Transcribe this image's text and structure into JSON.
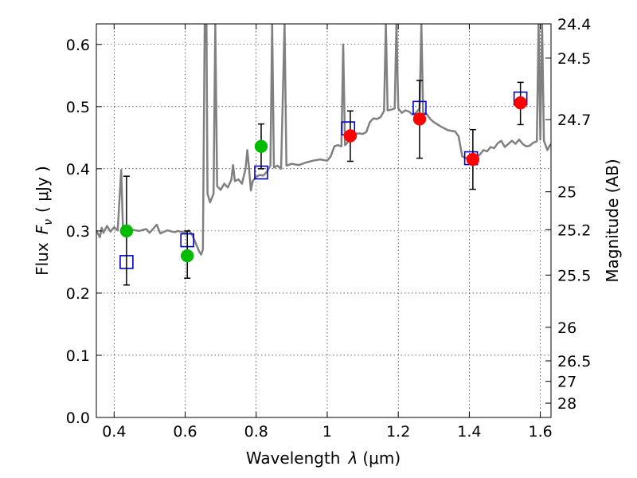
{
  "chart_data": {
    "type": "scatter",
    "xlabel_prefix": "Wavelength",
    "xlabel_symbol": "λ",
    "xlabel_unit": "(μm)",
    "ylabel_prefix": "Flux",
    "ylabel_symbol": "F",
    "ylabel_subscript": "ν",
    "ylabel_unit": "( μJy )",
    "y2label": "Magnitude (AB)",
    "xlim": [
      0.35,
      1.63
    ],
    "ylim": [
      0.0,
      0.633
    ],
    "grid": true,
    "x_ticks": [
      0.4,
      0.6,
      0.8,
      1.0,
      1.2,
      1.4,
      1.6
    ],
    "x_tick_labels": [
      "0.4",
      "0.6",
      "0.8",
      "1",
      "1.2",
      "1.4",
      "1.6"
    ],
    "y_ticks": [
      0.0,
      0.1,
      0.2,
      0.3,
      0.4,
      0.5,
      0.6
    ],
    "y_tick_labels": [
      "0.0",
      "0.1",
      "0.2",
      "0.3",
      "0.4",
      "0.5",
      "0.6"
    ],
    "y2_ticks": [
      {
        "label": "24.4",
        "flux": 0.633
      },
      {
        "label": "24.5",
        "flux": 0.578
      },
      {
        "label": "24.7",
        "flux": 0.479
      },
      {
        "label": "25",
        "flux": 0.363
      },
      {
        "label": "25.2",
        "flux": 0.302
      },
      {
        "label": "25.5",
        "flux": 0.229
      },
      {
        "label": "26",
        "flux": 0.145
      },
      {
        "label": "26.5",
        "flux": 0.091
      },
      {
        "label": "27",
        "flux": 0.058
      },
      {
        "label": "28",
        "flux": 0.023
      }
    ],
    "series": [
      {
        "marker": "square-open",
        "color": "#0000cc",
        "points": [
          {
            "x": 0.435,
            "y": 0.25
          },
          {
            "x": 0.606,
            "y": 0.285
          },
          {
            "x": 0.814,
            "y": 0.394
          },
          {
            "x": 1.059,
            "y": 0.465
          },
          {
            "x": 1.26,
            "y": 0.498
          },
          {
            "x": 1.405,
            "y": 0.417
          },
          {
            "x": 1.544,
            "y": 0.513
          }
        ]
      },
      {
        "marker": "circle-filled",
        "color": "#00bb00",
        "points": [
          {
            "x": 0.435,
            "y": 0.3,
            "err_low": 0.213,
            "err_high": 0.388
          },
          {
            "x": 0.606,
            "y": 0.26,
            "err_low": 0.224,
            "err_high": 0.3
          },
          {
            "x": 0.814,
            "y": 0.436,
            "err_low": 0.4,
            "err_high": 0.472
          }
        ]
      },
      {
        "marker": "circle-filled",
        "color": "#ff0000",
        "points": [
          {
            "x": 1.065,
            "y": 0.453,
            "err_low": 0.412,
            "err_high": 0.493
          },
          {
            "x": 1.26,
            "y": 0.48,
            "err_low": 0.417,
            "err_high": 0.542
          },
          {
            "x": 1.41,
            "y": 0.415,
            "err_low": 0.367,
            "err_high": 0.463
          },
          {
            "x": 1.544,
            "y": 0.506,
            "err_low": 0.471,
            "err_high": 0.539
          }
        ]
      }
    ],
    "spectrum": {
      "color": "#808080",
      "points": [
        [
          0.35,
          0.3
        ],
        [
          0.36,
          0.29
        ],
        [
          0.365,
          0.305
        ],
        [
          0.37,
          0.297
        ],
        [
          0.38,
          0.308
        ],
        [
          0.39,
          0.299
        ],
        [
          0.4,
          0.306
        ],
        [
          0.41,
          0.301
        ],
        [
          0.42,
          0.398
        ],
        [
          0.425,
          0.3
        ],
        [
          0.43,
          0.308
        ],
        [
          0.44,
          0.298
        ],
        [
          0.45,
          0.302
        ],
        [
          0.47,
          0.3
        ],
        [
          0.49,
          0.303
        ],
        [
          0.5,
          0.297
        ],
        [
          0.52,
          0.31
        ],
        [
          0.53,
          0.296
        ],
        [
          0.55,
          0.301
        ],
        [
          0.57,
          0.298
        ],
        [
          0.58,
          0.3
        ],
        [
          0.6,
          0.297
        ],
        [
          0.61,
          0.301
        ],
        [
          0.62,
          0.294
        ],
        [
          0.63,
          0.28
        ],
        [
          0.64,
          0.266
        ],
        [
          0.645,
          0.262
        ],
        [
          0.65,
          0.27
        ],
        [
          0.655,
          0.633
        ],
        [
          0.66,
          0.633
        ],
        [
          0.663,
          0.36
        ],
        [
          0.67,
          0.346
        ],
        [
          0.68,
          0.36
        ],
        [
          0.685,
          0.633
        ],
        [
          0.69,
          0.372
        ],
        [
          0.7,
          0.366
        ],
        [
          0.71,
          0.376
        ],
        [
          0.72,
          0.37
        ],
        [
          0.73,
          0.382
        ],
        [
          0.735,
          0.406
        ],
        [
          0.74,
          0.38
        ],
        [
          0.75,
          0.383
        ],
        [
          0.76,
          0.376
        ],
        [
          0.77,
          0.4
        ],
        [
          0.775,
          0.43
        ],
        [
          0.78,
          0.4
        ],
        [
          0.785,
          0.365
        ],
        [
          0.79,
          0.38
        ],
        [
          0.8,
          0.387
        ],
        [
          0.81,
          0.39
        ],
        [
          0.82,
          0.389
        ],
        [
          0.83,
          0.395
        ],
        [
          0.84,
          0.405
        ],
        [
          0.845,
          0.633
        ],
        [
          0.85,
          0.402
        ],
        [
          0.86,
          0.405
        ],
        [
          0.87,
          0.4
        ],
        [
          0.88,
          0.633
        ],
        [
          0.885,
          0.405
        ],
        [
          0.9,
          0.408
        ],
        [
          0.92,
          0.406
        ],
        [
          0.94,
          0.41
        ],
        [
          0.96,
          0.413
        ],
        [
          0.98,
          0.415
        ],
        [
          1.0,
          0.413
        ],
        [
          1.01,
          0.42
        ],
        [
          1.02,
          0.436
        ],
        [
          1.03,
          0.438
        ],
        [
          1.04,
          0.436
        ],
        [
          1.045,
          0.6
        ],
        [
          1.05,
          0.438
        ],
        [
          1.06,
          0.444
        ],
        [
          1.07,
          0.453
        ],
        [
          1.08,
          0.456
        ],
        [
          1.09,
          0.457
        ],
        [
          1.1,
          0.456
        ],
        [
          1.11,
          0.459
        ],
        [
          1.12,
          0.475
        ],
        [
          1.13,
          0.481
        ],
        [
          1.14,
          0.48
        ],
        [
          1.15,
          0.483
        ],
        [
          1.16,
          0.493
        ],
        [
          1.165,
          0.633
        ],
        [
          1.17,
          0.494
        ],
        [
          1.18,
          0.495
        ],
        [
          1.19,
          0.497
        ],
        [
          1.195,
          0.633
        ],
        [
          1.2,
          0.497
        ],
        [
          1.21,
          0.49
        ],
        [
          1.22,
          0.494
        ],
        [
          1.23,
          0.492
        ],
        [
          1.24,
          0.487
        ],
        [
          1.25,
          0.49
        ],
        [
          1.26,
          0.497
        ],
        [
          1.265,
          0.633
        ],
        [
          1.27,
          0.49
        ],
        [
          1.28,
          0.488
        ],
        [
          1.29,
          0.48
        ],
        [
          1.3,
          0.475
        ],
        [
          1.32,
          0.468
        ],
        [
          1.34,
          0.462
        ],
        [
          1.36,
          0.46
        ],
        [
          1.37,
          0.452
        ],
        [
          1.38,
          0.42
        ],
        [
          1.39,
          0.417
        ],
        [
          1.4,
          0.42
        ],
        [
          1.41,
          0.41
        ],
        [
          1.42,
          0.418
        ],
        [
          1.43,
          0.423
        ],
        [
          1.44,
          0.43
        ],
        [
          1.45,
          0.428
        ],
        [
          1.46,
          0.435
        ],
        [
          1.47,
          0.433
        ],
        [
          1.48,
          0.441
        ],
        [
          1.49,
          0.445
        ],
        [
          1.5,
          0.435
        ],
        [
          1.51,
          0.44
        ],
        [
          1.52,
          0.445
        ],
        [
          1.53,
          0.44
        ],
        [
          1.54,
          0.447
        ],
        [
          1.55,
          0.44
        ],
        [
          1.56,
          0.436
        ],
        [
          1.57,
          0.437
        ],
        [
          1.58,
          0.442
        ],
        [
          1.59,
          0.444
        ],
        [
          1.595,
          0.633
        ],
        [
          1.6,
          0.447
        ],
        [
          1.605,
          0.633
        ],
        [
          1.61,
          0.445
        ],
        [
          1.62,
          0.43
        ],
        [
          1.625,
          0.436
        ],
        [
          1.63,
          0.44
        ]
      ]
    }
  }
}
